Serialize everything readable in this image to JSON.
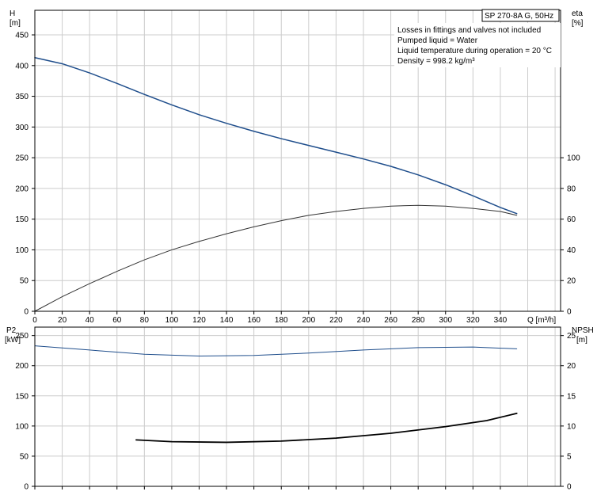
{
  "product_label": "SP 270-8A G, 50Hz",
  "notes": [
    "Losses in fittings and valves not included",
    "Pumped liquid = Water",
    "Liquid temperature during operation = 20 °C",
    "Density = 998.2 kg/m³"
  ],
  "colors": {
    "head_curve": "#1f4e8c",
    "efficiency_curve": "#333333",
    "power_curve": "#1f4e8c",
    "npsh_curve": "#000000",
    "grid": "#cccccc"
  },
  "chart_data": [
    {
      "type": "line",
      "id": "top",
      "left_axis": {
        "label_line1": "H",
        "label_line2": "[m]",
        "ylim": [
          0,
          490
        ],
        "ticks": [
          0,
          50,
          100,
          150,
          200,
          250,
          300,
          350,
          400,
          450
        ]
      },
      "right_axis": {
        "label_line1": "eta",
        "label_line2": "[%]",
        "ylim": [
          0,
          196
        ],
        "ticks": [
          0,
          20,
          40,
          60,
          80,
          100
        ]
      },
      "x_axis": {
        "label": "Q [m³/h]",
        "xlim": [
          0,
          384
        ],
        "ticks": [
          0,
          20,
          40,
          60,
          80,
          100,
          120,
          140,
          160,
          180,
          200,
          220,
          240,
          260,
          280,
          300,
          320,
          340
        ]
      },
      "grid": true,
      "series": [
        {
          "key": "head",
          "axis": "left",
          "x": [
            0,
            20,
            40,
            60,
            80,
            100,
            120,
            140,
            160,
            180,
            200,
            220,
            240,
            260,
            280,
            300,
            320,
            340,
            352
          ],
          "y": [
            413,
            403,
            388,
            371,
            353,
            336,
            320,
            306,
            293,
            281,
            270,
            259,
            248,
            236,
            222,
            206,
            188,
            169,
            159
          ]
        },
        {
          "key": "efficiency",
          "axis": "right",
          "x": [
            0,
            20,
            40,
            60,
            80,
            100,
            120,
            140,
            160,
            180,
            200,
            220,
            240,
            260,
            280,
            300,
            320,
            340,
            352
          ],
          "y": [
            0,
            9.5,
            18,
            26,
            33.5,
            40,
            45.5,
            50.5,
            55,
            59,
            62.5,
            65,
            67,
            68.5,
            69,
            68.5,
            67,
            65,
            62.5
          ]
        }
      ]
    },
    {
      "type": "line",
      "id": "bottom",
      "left_axis": {
        "label_line1": "P2",
        "label_line2": "[kW]",
        "ylim": [
          0,
          264
        ],
        "ticks": [
          0,
          50,
          100,
          150,
          200,
          250
        ]
      },
      "right_axis": {
        "label_line1": "NPSH",
        "label_line2": "[m]",
        "ylim": [
          0,
          26.4
        ],
        "ticks": [
          0,
          5,
          10,
          15,
          20,
          25
        ]
      },
      "x_axis": {
        "xlim": [
          0,
          384
        ],
        "ticks": [
          0,
          20,
          40,
          60,
          80,
          100,
          120,
          140,
          160,
          180,
          200,
          220,
          240,
          260,
          280,
          300,
          320,
          340
        ]
      },
      "grid": true,
      "series": [
        {
          "key": "power",
          "axis": "left",
          "x": [
            0,
            40,
            80,
            120,
            160,
            200,
            240,
            280,
            320,
            352
          ],
          "y": [
            233,
            226,
            219,
            216,
            217,
            221,
            226,
            230,
            231,
            228
          ]
        },
        {
          "key": "npsh",
          "axis": "right",
          "x": [
            74,
            100,
            140,
            180,
            220,
            260,
            300,
            330,
            352
          ],
          "y": [
            7.7,
            7.4,
            7.3,
            7.5,
            8.0,
            8.8,
            9.9,
            10.9,
            12.1
          ]
        }
      ]
    }
  ]
}
